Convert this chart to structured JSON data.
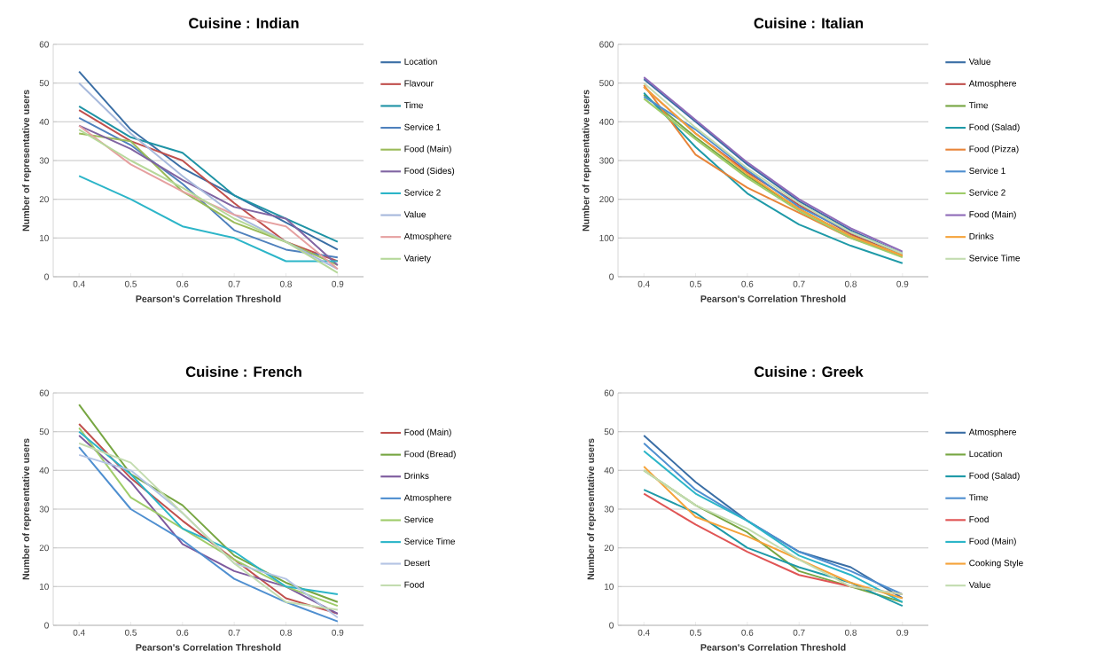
{
  "chart_data": [
    {
      "type": "line",
      "title": "Cuisine : Indian",
      "xlabel": "Pearson's Correlation Threshold",
      "ylabel": "Number of representative users",
      "categories": [
        "0.4",
        "0.5",
        "0.6",
        "0.7",
        "0.8",
        "0.9"
      ],
      "ylim": [
        0,
        60
      ],
      "yticks": [
        0,
        10,
        20,
        30,
        40,
        50,
        60
      ],
      "grid": "y",
      "legend": "right",
      "series": [
        {
          "name": "Location",
          "color": "#3a6ea5",
          "values": [
            53,
            38,
            28,
            21,
            14,
            7
          ]
        },
        {
          "name": "Flavour",
          "color": "#c0504d",
          "values": [
            43,
            35,
            30,
            19,
            9,
            4
          ]
        },
        {
          "name": "Time",
          "color": "#1f93a5",
          "values": [
            44,
            36,
            32,
            21,
            15,
            9
          ]
        },
        {
          "name": "Service 1",
          "color": "#4f81bd",
          "values": [
            41,
            34,
            24,
            12,
            7,
            5
          ]
        },
        {
          "name": "Food (Main)",
          "color": "#9bbb59",
          "values": [
            37,
            35,
            22,
            14,
            9,
            3
          ]
        },
        {
          "name": "Food (Sides)",
          "color": "#8064a2",
          "values": [
            39,
            33,
            25,
            18,
            15,
            3
          ]
        },
        {
          "name": "Service 2",
          "color": "#2cb5c8",
          "values": [
            26,
            20,
            13,
            10,
            4,
            4
          ]
        },
        {
          "name": "Value",
          "color": "#a7b9dc",
          "values": [
            50,
            37,
            26,
            16,
            9,
            2
          ]
        },
        {
          "name": "Atmosphere",
          "color": "#e6a0a0",
          "values": [
            39,
            29,
            22,
            16,
            13,
            2
          ]
        },
        {
          "name": "Variety",
          "color": "#b6d89a",
          "values": [
            38,
            30,
            23,
            15,
            9,
            1
          ]
        }
      ]
    },
    {
      "type": "line",
      "title": "Cuisine : Italian",
      "xlabel": "Pearson's Correlation Threshold",
      "ylabel": "Number of representative users",
      "categories": [
        "0.4",
        "0.5",
        "0.6",
        "0.7",
        "0.8",
        "0.9"
      ],
      "ylim": [
        0,
        600
      ],
      "yticks": [
        0,
        100,
        200,
        300,
        400,
        500,
        600
      ],
      "grid": "y",
      "legend": "right",
      "series": [
        {
          "name": "Value",
          "color": "#3a6ea5",
          "values": [
            510,
            400,
            290,
            195,
            120,
            60
          ]
        },
        {
          "name": "Atmosphere",
          "color": "#c0504d",
          "values": [
            490,
            370,
            270,
            185,
            110,
            55
          ]
        },
        {
          "name": "Time",
          "color": "#77a642",
          "values": [
            470,
            360,
            260,
            175,
            105,
            55
          ]
        },
        {
          "name": "Food (Salad)",
          "color": "#1f9aa8",
          "values": [
            475,
            335,
            215,
            135,
            80,
            35
          ]
        },
        {
          "name": "Food (Pizza)",
          "color": "#e8853a",
          "values": [
            495,
            315,
            230,
            165,
            100,
            55
          ]
        },
        {
          "name": "Service 1",
          "color": "#4f8fd0",
          "values": [
            465,
            380,
            275,
            180,
            115,
            60
          ]
        },
        {
          "name": "Service 2",
          "color": "#9fcc6a",
          "values": [
            460,
            355,
            255,
            170,
            100,
            50
          ]
        },
        {
          "name": "Food (Main)",
          "color": "#8f6bb8",
          "values": [
            515,
            405,
            295,
            200,
            125,
            65
          ]
        },
        {
          "name": "Drinks",
          "color": "#f5a33a",
          "values": [
            490,
            370,
            265,
            175,
            105,
            55
          ]
        },
        {
          "name": "Service Time",
          "color": "#c3dcb0",
          "values": [
            500,
            385,
            280,
            190,
            115,
            60
          ]
        }
      ]
    },
    {
      "type": "line",
      "title": "Cuisine : French",
      "xlabel": "Pearson's Correlation Threshold",
      "ylabel": "Number of representative users",
      "categories": [
        "0.4",
        "0.5",
        "0.6",
        "0.7",
        "0.8",
        "0.9"
      ],
      "ylim": [
        0,
        60
      ],
      "yticks": [
        0,
        10,
        20,
        30,
        40,
        50,
        60
      ],
      "grid": "y",
      "legend": "right",
      "series": [
        {
          "name": "Food (Main)",
          "color": "#c0504d",
          "values": [
            52,
            38,
            27,
            17,
            7,
            3
          ]
        },
        {
          "name": "Food (Bread)",
          "color": "#77a642",
          "values": [
            57,
            39,
            31,
            18,
            11,
            6
          ]
        },
        {
          "name": "Drinks",
          "color": "#7d5a9e",
          "values": [
            49,
            37,
            21,
            14,
            10,
            3
          ]
        },
        {
          "name": "Atmosphere",
          "color": "#4f8fd0",
          "values": [
            46,
            30,
            22,
            12,
            6,
            1
          ]
        },
        {
          "name": "Service",
          "color": "#9fcc6a",
          "values": [
            51,
            33,
            25,
            17,
            10,
            5
          ]
        },
        {
          "name": "Service Time",
          "color": "#2cb5c8",
          "values": [
            50,
            39,
            25,
            19,
            10,
            8
          ]
        },
        {
          "name": "Desert",
          "color": "#b4c4e4",
          "values": [
            44,
            40,
            29,
            16,
            12,
            2
          ]
        },
        {
          "name": "Food",
          "color": "#c3dcb0",
          "values": [
            47,
            42,
            29,
            16,
            6,
            4
          ]
        }
      ]
    },
    {
      "type": "line",
      "title": "Cuisine : Greek",
      "xlabel": "Pearson's Correlation Threshold",
      "ylabel": "Number of representative users",
      "categories": [
        "0.4",
        "0.5",
        "0.6",
        "0.7",
        "0.8",
        "0.9"
      ],
      "ylim": [
        0,
        60
      ],
      "yticks": [
        0,
        10,
        20,
        30,
        40,
        50,
        60
      ],
      "grid": "y",
      "legend": "right",
      "series": [
        {
          "name": "Atmosphere",
          "color": "#3a6ea5",
          "values": [
            49,
            37,
            27,
            19,
            15,
            7
          ]
        },
        {
          "name": "Location",
          "color": "#77a642",
          "values": [
            40,
            31,
            24,
            14,
            10,
            6
          ]
        },
        {
          "name": "Food (Salad)",
          "color": "#1f9aa8",
          "values": [
            35,
            29,
            20,
            15,
            11,
            5
          ]
        },
        {
          "name": "Time",
          "color": "#4f8fd0",
          "values": [
            47,
            35,
            27,
            19,
            14,
            8
          ]
        },
        {
          "name": "Food",
          "color": "#e05555",
          "values": [
            34,
            26,
            19,
            13,
            10,
            8
          ]
        },
        {
          "name": "Food (Main)",
          "color": "#2cb5c8",
          "values": [
            45,
            34,
            27,
            18,
            13,
            6
          ]
        },
        {
          "name": "Cooking Style",
          "color": "#f5a33a",
          "values": [
            41,
            28,
            23,
            17,
            11,
            7
          ]
        },
        {
          "name": "Value",
          "color": "#c3dcb0",
          "values": [
            40,
            31,
            25,
            17,
            10,
            8
          ]
        }
      ]
    }
  ]
}
